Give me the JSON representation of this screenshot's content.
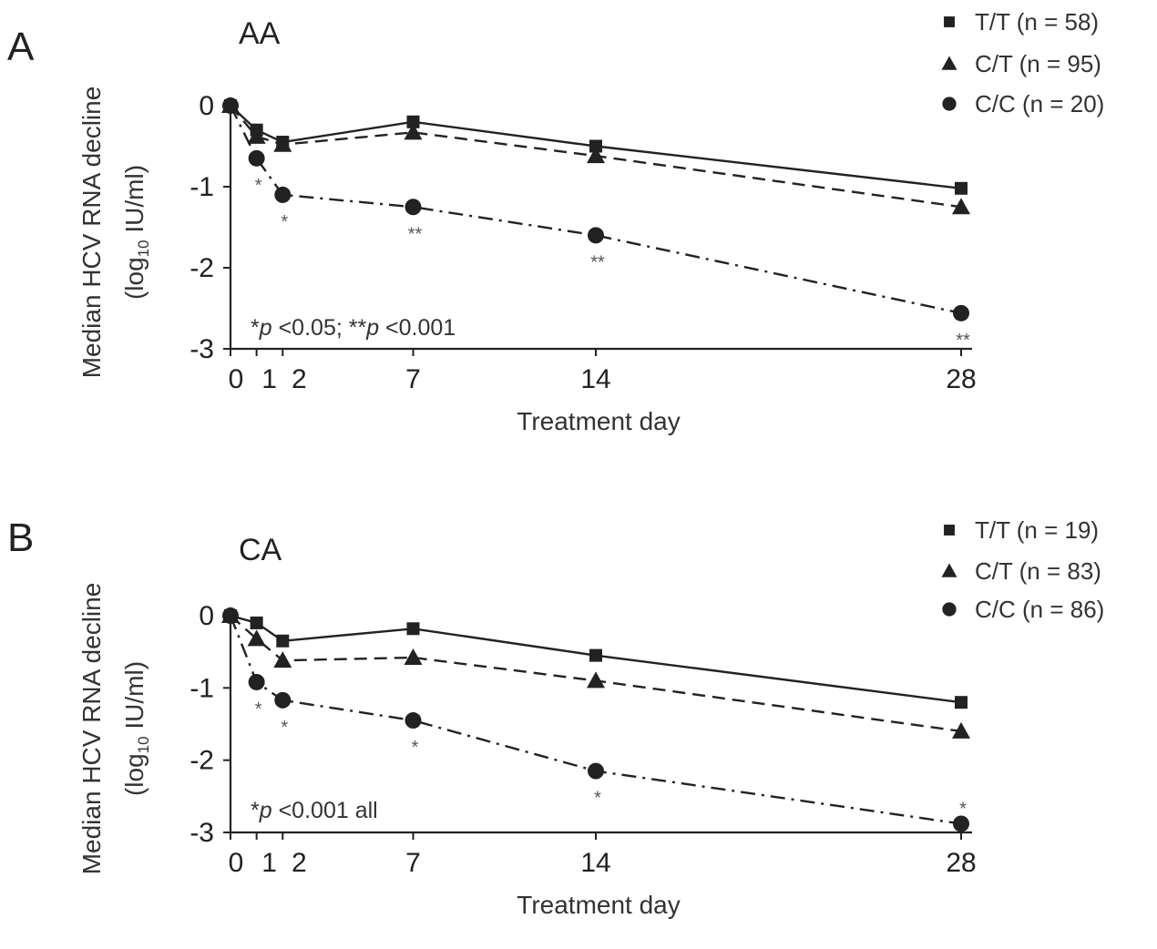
{
  "chart_data": [
    {
      "type": "line",
      "panel_letter": "A",
      "title": "AA",
      "xlabel": "Treatment day",
      "ylabel_line1": "Median HCV RNA decline",
      "ylabel_line2_pre": "(log",
      "ylabel_line2_sub": "10",
      "ylabel_line2_post": " IU/ml)",
      "x_ticks": [
        0,
        1,
        2,
        7,
        14,
        28
      ],
      "x_tick_labels": [
        "0",
        "1",
        "2",
        "7",
        "14",
        "28"
      ],
      "y_ticks": [
        0,
        -1,
        -2,
        -3
      ],
      "y_tick_labels": [
        "0",
        "-1",
        "-2",
        "-3"
      ],
      "xlim": [
        0,
        28
      ],
      "ylim": [
        -3,
        0
      ],
      "legend_position": "top-right",
      "series": [
        {
          "name": "T/T (n = 58)",
          "marker": "square",
          "dash": "solid",
          "x": [
            0,
            1,
            2,
            7,
            14,
            28
          ],
          "y": [
            0,
            -0.3,
            -0.45,
            -0.2,
            -0.5,
            -1.02
          ]
        },
        {
          "name": "C/T (n = 95)",
          "marker": "triangle",
          "dash": "dashed",
          "x": [
            0,
            1,
            2,
            7,
            14,
            28
          ],
          "y": [
            0,
            -0.38,
            -0.48,
            -0.33,
            -0.62,
            -1.25
          ]
        },
        {
          "name": "C/C (n = 20)",
          "marker": "circle",
          "dash": "dashdot",
          "x": [
            0,
            1,
            2,
            7,
            14,
            28
          ],
          "y": [
            0,
            -0.65,
            -1.1,
            -1.25,
            -1.6,
            -2.56
          ]
        }
      ],
      "significance": [
        {
          "x": 1,
          "label": "*"
        },
        {
          "x": 2,
          "label": "*"
        },
        {
          "x": 7,
          "label": "**"
        },
        {
          "x": 14,
          "label": "**"
        },
        {
          "x": 28,
          "label": "**"
        }
      ],
      "note_parts": [
        "*",
        "p",
        " <0.05; **",
        "p",
        " <0.001"
      ]
    },
    {
      "type": "line",
      "panel_letter": "B",
      "title": "CA",
      "xlabel": "Treatment day",
      "ylabel_line1": "Median HCV RNA decline",
      "ylabel_line2_pre": "(log",
      "ylabel_line2_sub": "10",
      "ylabel_line2_post": " IU/ml)",
      "x_ticks": [
        0,
        1,
        2,
        7,
        14,
        28
      ],
      "x_tick_labels": [
        "0",
        "1",
        "2",
        "7",
        "14",
        "28"
      ],
      "y_ticks": [
        0,
        -1,
        -2,
        -3
      ],
      "y_tick_labels": [
        "0",
        "-1",
        "-2",
        "-3"
      ],
      "xlim": [
        0,
        28
      ],
      "ylim": [
        -3,
        0
      ],
      "legend_position": "top-right",
      "series": [
        {
          "name": "T/T (n = 19)",
          "marker": "square",
          "dash": "solid",
          "x": [
            0,
            1,
            2,
            7,
            14,
            28
          ],
          "y": [
            0,
            -0.1,
            -0.35,
            -0.18,
            -0.55,
            -1.2
          ]
        },
        {
          "name": "C/T (n = 83)",
          "marker": "triangle",
          "dash": "dashed",
          "x": [
            0,
            1,
            2,
            7,
            14,
            28
          ],
          "y": [
            0,
            -0.32,
            -0.62,
            -0.58,
            -0.9,
            -1.6
          ]
        },
        {
          "name": "C/C (n = 86)",
          "marker": "circle",
          "dash": "dashdot",
          "x": [
            0,
            1,
            2,
            7,
            14,
            28
          ],
          "y": [
            0,
            -0.92,
            -1.17,
            -1.45,
            -2.15,
            -2.88
          ]
        }
      ],
      "significance": [
        {
          "x": 1,
          "label": "*"
        },
        {
          "x": 2,
          "label": "*"
        },
        {
          "x": 7,
          "label": "*"
        },
        {
          "x": 14,
          "label": "*"
        },
        {
          "x": 28,
          "label": "*"
        }
      ],
      "note_parts": [
        "*",
        "p",
        " <0.001 all"
      ]
    }
  ]
}
